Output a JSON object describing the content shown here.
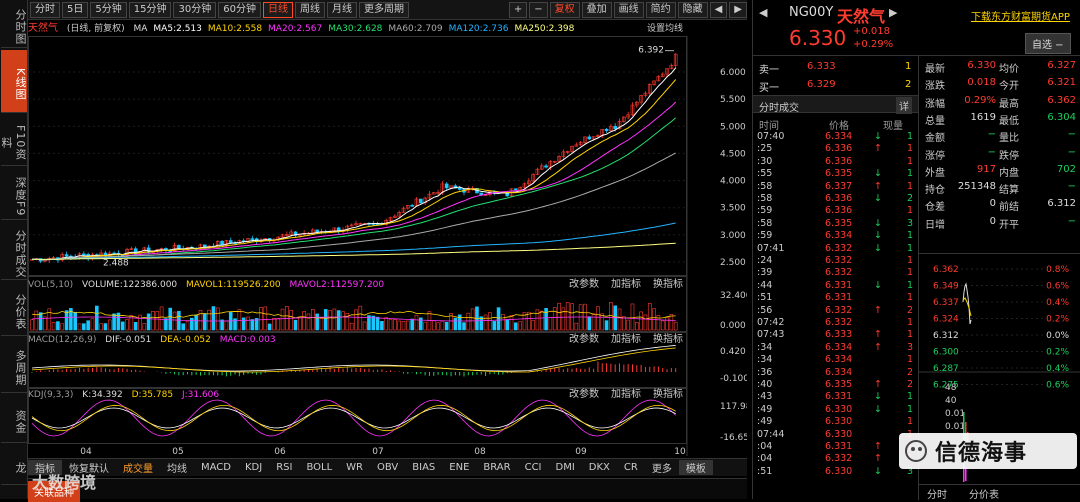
{
  "sidebar": [
    {
      "label": "分时图",
      "active": false
    },
    {
      "label": "K线图",
      "active": true
    },
    {
      "label": "F10资料",
      "active": false
    },
    {
      "label": "深度F9",
      "active": false
    },
    {
      "label": "分时成交",
      "active": false
    },
    {
      "label": "分价表",
      "active": false
    },
    {
      "label": "多周期",
      "active": false
    },
    {
      "label": "资金",
      "active": false
    },
    {
      "label": "龙",
      "active": false
    }
  ],
  "toolbar": {
    "periods": [
      "分时",
      "5日",
      "5分钟",
      "15分钟",
      "30分钟",
      "60分钟",
      "日线",
      "周线",
      "月线",
      "更多周期"
    ],
    "active_period": "日线",
    "plus": "+",
    "minus": "−",
    "restore": "复权",
    "overlay": "叠加",
    "draw": "画线",
    "summary": "简约",
    "hide": "隐藏",
    "caret": "▾",
    "left_arrow": "◀",
    "right_arrow": "▶"
  },
  "kline": {
    "title_name": "天然气",
    "title_mode": "(日线, 前复权)",
    "ma": [
      {
        "label": "MA",
        "color": "#dddddd"
      },
      {
        "label": "MA5:2.513",
        "color": "#ffffff"
      },
      {
        "label": "MA10:2.558",
        "color": "#ffd400"
      },
      {
        "label": "MA20:2.567",
        "color": "#ff34ff"
      },
      {
        "label": "MA30:2.628",
        "color": "#23e06f"
      },
      {
        "label": "MA60:2.709",
        "color": "#aaaaaa"
      },
      {
        "label": "MA120:2.736",
        "color": "#24b4ff"
      },
      {
        "label": "MA250:2.398",
        "color": "#ffff80"
      }
    ],
    "setting": "设置均线",
    "high_mark": "6.392",
    "low_mark": "2.488",
    "yticks": [
      "6.000",
      "5.500",
      "5.000",
      "4.500",
      "4.000",
      "3.500",
      "3.000",
      "2.500"
    ],
    "xticks": [
      "04",
      "05",
      "06",
      "07",
      "08",
      "09",
      "10"
    ]
  },
  "vol": {
    "head": "VOL(5,10)",
    "value": "VOLUME:122386.000",
    "m1": "MAVOL1:119526.200",
    "m2": "MAVOL2:112597.200",
    "yticks": [
      "32.400",
      "0.000"
    ]
  },
  "macd": {
    "head": "MACD(12,26,9)",
    "dif": "DIF:-0.051",
    "dea": "DEA:-0.052",
    "macd": "MACD:0.003",
    "yticks": [
      "0.420",
      "-0.100"
    ]
  },
  "kdj": {
    "head": "KDJ(9,3,3)",
    "k": "K:34.392",
    "d": "D:35.785",
    "j": "J:31.606",
    "yticks": [
      "117.980",
      "-16.650"
    ]
  },
  "panel_buttons": {
    "change": "改参数",
    "add": "加指标",
    "swap": "换指标"
  },
  "bottom_tabs": [
    "指标",
    "恢复默认",
    "成交量",
    "均线",
    "MACD",
    "KDJ",
    "RSI",
    "BOLL",
    "WR",
    "OBV",
    "BIAS",
    "ENE",
    "BRAR",
    "CCI",
    "DMI",
    "DKX",
    "CR",
    "更多",
    "模板"
  ],
  "bottom_bar2": "关联品种",
  "quote": {
    "code": "NG00Y",
    "name": "天然气",
    "price": "6.330",
    "change": "+0.018",
    "pct": "+0.29%",
    "download": "下载东方财富期货APP",
    "watch_button": "自选 −",
    "sell1_label": "卖一",
    "sell1_price": "6.333",
    "sell1_vol": "1",
    "buy1_label": "买一",
    "buy1_price": "6.329",
    "buy1_vol": "2",
    "stats": [
      [
        "最新",
        "6.330",
        "均价",
        "6.327"
      ],
      [
        "涨跌",
        "0.018",
        "今开",
        "6.321"
      ],
      [
        "涨幅",
        "0.29%",
        "最高",
        "6.362"
      ],
      [
        "总量",
        "1619",
        "最低",
        "6.304"
      ],
      [
        "金额",
        "−",
        "量比",
        "−"
      ],
      [
        "涨停",
        "−",
        "跌停",
        "−"
      ],
      [
        "外盘",
        "917",
        "内盘",
        "702"
      ],
      [
        "持仓",
        "251348",
        "结算",
        "−"
      ],
      [
        "仓差",
        "0",
        "前结",
        "6.312"
      ],
      [
        "日增",
        "0",
        "开平",
        "−"
      ]
    ]
  },
  "trades": {
    "title": "分时成交",
    "detail": "详",
    "col_time": "时间",
    "col_price": "价格",
    "col_vol": "现量",
    "rows": [
      [
        "07:40",
        "6.334",
        "down",
        "1"
      ],
      [
        ":25",
        "6.336",
        "up",
        "1"
      ],
      [
        ":30",
        "6.336",
        "",
        "1"
      ],
      [
        ":55",
        "6.335",
        "down",
        "1"
      ],
      [
        ":58",
        "6.337",
        "up",
        "1"
      ],
      [
        ":58",
        "6.336",
        "down",
        "2"
      ],
      [
        ":59",
        "6.336",
        "",
        "1"
      ],
      [
        ":58",
        "6.335",
        "down",
        "3"
      ],
      [
        ":59",
        "6.334",
        "down",
        "1"
      ],
      [
        "07:41",
        "6.332",
        "down",
        "1"
      ],
      [
        ":24",
        "6.332",
        "",
        "1"
      ],
      [
        ":39",
        "6.332",
        "",
        "1"
      ],
      [
        ":44",
        "6.331",
        "down",
        "1"
      ],
      [
        ":51",
        "6.331",
        "",
        "1"
      ],
      [
        ":56",
        "6.332",
        "up",
        "2"
      ],
      [
        "07:42",
        "6.332",
        "",
        "1"
      ],
      [
        "07:43",
        "6.333",
        "up",
        "1"
      ],
      [
        ":34",
        "6.334",
        "up",
        "3"
      ],
      [
        ":34",
        "6.334",
        "",
        "1"
      ],
      [
        ":36",
        "6.334",
        "",
        "2"
      ],
      [
        ":40",
        "6.335",
        "up",
        "2"
      ],
      [
        ":43",
        "6.331",
        "down",
        "1"
      ],
      [
        ":49",
        "6.330",
        "down",
        "1"
      ],
      [
        ":49",
        "6.330",
        "",
        "1"
      ],
      [
        "07:44",
        "6.330",
        "",
        "1"
      ],
      [
        ":04",
        "6.331",
        "up",
        "1"
      ],
      [
        ":04",
        "6.332",
        "up",
        "1"
      ],
      [
        ":51",
        "6.330",
        "down",
        "3"
      ]
    ]
  },
  "mini": {
    "prices": [
      "6.362",
      "6.349",
      "6.337",
      "6.324",
      "6.312",
      "6.300",
      "6.287",
      "6.275"
    ],
    "pcts": [
      "0.8%",
      "0.6%",
      "0.4%",
      "0.2%",
      "0.0%",
      "0.2%",
      "0.4%",
      "0.6%"
    ],
    "vol": [
      "48",
      "40",
      "0.01",
      "0.01"
    ],
    "tabs": [
      "分时",
      "分价表"
    ]
  },
  "watermark": "信德海事",
  "watermark2": "大数跨境"
}
